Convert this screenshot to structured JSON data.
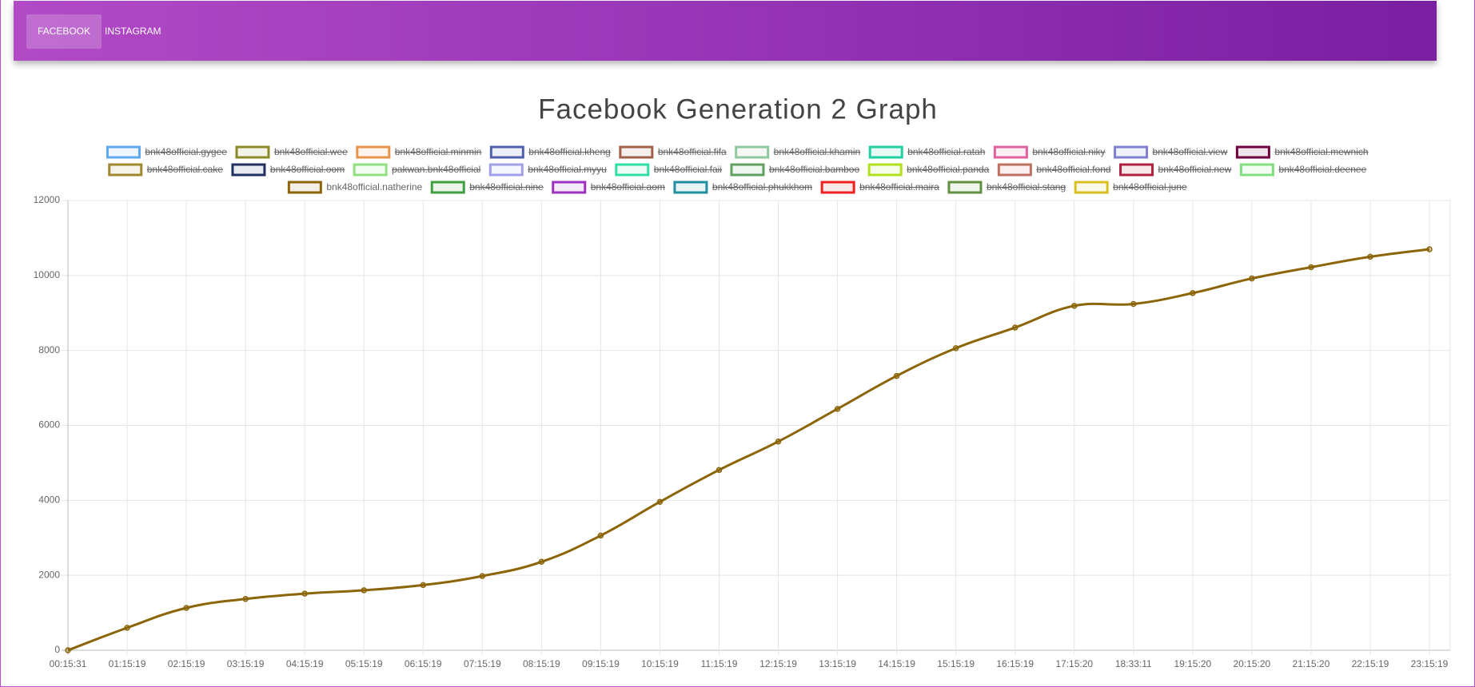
{
  "nav": {
    "tabs": [
      "FACEBOOK",
      "INSTAGRAM"
    ],
    "active": 0
  },
  "chart_data": {
    "type": "line",
    "title": "Facebook Generation 2 Graph",
    "categories": [
      "00:15:31",
      "01:15:19",
      "02:15:19",
      "03:15:19",
      "04:15:19",
      "05:15:19",
      "06:15:19",
      "07:15:19",
      "08:15:19",
      "09:15:19",
      "10:15:19",
      "11:15:19",
      "12:15:19",
      "13:15:19",
      "14:15:19",
      "15:15:19",
      "16:15:19",
      "17:15:20",
      "18:33:11",
      "19:15:20",
      "20:15:20",
      "21:15:20",
      "22:15:19",
      "23:15:19"
    ],
    "series": [
      {
        "name": "bnk48official.gygee",
        "color": "#5ea8f0",
        "hidden": true
      },
      {
        "name": "bnk48official.wee",
        "color": "#8b8b2a",
        "hidden": true
      },
      {
        "name": "bnk48official.minmin",
        "color": "#e8944a",
        "hidden": true
      },
      {
        "name": "bnk48official.kheng",
        "color": "#5060a8",
        "hidden": true
      },
      {
        "name": "bnk48official.fifa",
        "color": "#a0604a",
        "hidden": true
      },
      {
        "name": "bnk48official.khamin",
        "color": "#90c8a0",
        "hidden": true
      },
      {
        "name": "bnk48official.ratah",
        "color": "#20d0a0",
        "hidden": true
      },
      {
        "name": "bnk48official.niky",
        "color": "#e060a0",
        "hidden": true
      },
      {
        "name": "bnk48official.view",
        "color": "#8080d0",
        "hidden": true
      },
      {
        "name": "bnk48official.mewnich",
        "color": "#700040",
        "hidden": true
      },
      {
        "name": "bnk48official.cake",
        "color": "#a08830",
        "hidden": true
      },
      {
        "name": "bnk48official.oom",
        "color": "#203060",
        "hidden": true
      },
      {
        "name": "pakwan.bnk48official",
        "color": "#90e080",
        "hidden": true
      },
      {
        "name": "bnk48official.myyu",
        "color": "#a0a0e8",
        "hidden": true
      },
      {
        "name": "bnk48official.faii",
        "color": "#30e0a0",
        "hidden": true
      },
      {
        "name": "bnk48official.bamboo",
        "color": "#60a060",
        "hidden": true
      },
      {
        "name": "bnk48official.panda",
        "color": "#b0e020",
        "hidden": true
      },
      {
        "name": "bnk48official.fond",
        "color": "#c07060",
        "hidden": true
      },
      {
        "name": "bnk48official.new",
        "color": "#b02040",
        "hidden": true
      },
      {
        "name": "bnk48official.deenee",
        "color": "#80e080",
        "hidden": true
      },
      {
        "name": "bnk48official.natherine",
        "color": "#8b6508",
        "hidden": false,
        "values": [
          0,
          600,
          1130,
          1370,
          1510,
          1600,
          1740,
          1980,
          2360,
          3060,
          3960,
          4810,
          5570,
          6440,
          7320,
          8060,
          8610,
          9190,
          9240,
          9530,
          9920,
          10220,
          10500,
          10700
        ]
      },
      {
        "name": "bnk48official.nine",
        "color": "#40a040",
        "hidden": true
      },
      {
        "name": "bnk48official.aom",
        "color": "#a030c0",
        "hidden": true
      },
      {
        "name": "bnk48official.phukkhom",
        "color": "#2090a0",
        "hidden": true
      },
      {
        "name": "bnk48official.maira",
        "color": "#f02020",
        "hidden": true
      },
      {
        "name": "bnk48official.stang",
        "color": "#609040",
        "hidden": true
      },
      {
        "name": "bnk48official.june",
        "color": "#d8c020",
        "hidden": true
      }
    ],
    "ylim": [
      0,
      12000
    ],
    "yticks": [
      0,
      2000,
      4000,
      6000,
      8000,
      10000,
      12000
    ],
    "grid": true
  }
}
